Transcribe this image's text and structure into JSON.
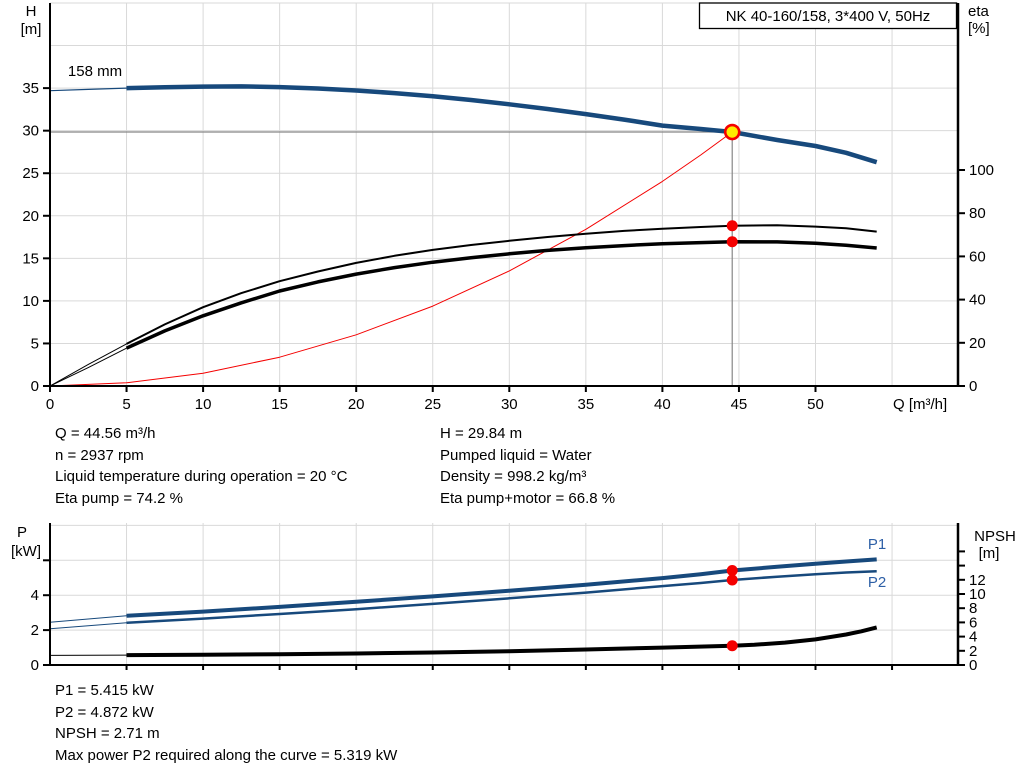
{
  "colors": {
    "curve_blue": "#17497c",
    "series_label_blue": "#2d5fa6",
    "black": "#000000",
    "red": "#f40000",
    "yellow": "#ffec00",
    "grid": "#d9d9d9",
    "guide": "#878787",
    "axis": "#000000",
    "title_box_border": "#000000",
    "title_box_fill": "#ffffff"
  },
  "title_box": {
    "label": "NK 40-160/158, 3*400 V, 50Hz"
  },
  "chart_data": [
    {
      "type": "line",
      "name": "qh-eta-chart",
      "title": "NK 40-160/158, 3*400 V, 50Hz",
      "xlabel": "Q [m³/h]",
      "x_range": [
        0,
        59.3
      ],
      "x_ticks": [
        0,
        5,
        10,
        15,
        20,
        25,
        30,
        35,
        40,
        45,
        50
      ],
      "x_grid": [
        5,
        10,
        15,
        20,
        25,
        30,
        35,
        40,
        45,
        50,
        55
      ],
      "y_left": {
        "label_lines": [
          "H",
          "[m]"
        ],
        "ticks": [
          0,
          5,
          10,
          15,
          20,
          25,
          30,
          35
        ],
        "grid": [
          5,
          10,
          15,
          20,
          25,
          30,
          35,
          40,
          45
        ],
        "range": [
          0,
          45
        ]
      },
      "y_right": {
        "label_lines": [
          "eta",
          "[%]"
        ],
        "ticks": [
          0,
          20,
          40,
          60,
          80,
          100
        ],
        "range": [
          0,
          177
        ]
      },
      "annotation": "158 mm",
      "legend_position": "none",
      "grid_on": true,
      "duty_point": {
        "q": 44.56,
        "h": 29.84
      },
      "dots": [
        {
          "axis": "right",
          "q": 44.56,
          "v": 74.2
        },
        {
          "axis": "right",
          "q": 44.56,
          "v": 66.8
        }
      ],
      "series": [
        {
          "name": "system-curve",
          "axis": "left",
          "color": "red",
          "width": [
            1,
            1
          ],
          "thick_from": 99,
          "points": [
            [
              0,
              0
            ],
            [
              5,
              0.38
            ],
            [
              10,
              1.5
            ],
            [
              15,
              3.38
            ],
            [
              20,
              6.01
            ],
            [
              25,
              9.39
            ],
            [
              30,
              13.52
            ],
            [
              35,
              18.41
            ],
            [
              40,
              24.04
            ],
            [
              42.5,
              27.14
            ],
            [
              44.56,
              29.84
            ]
          ]
        },
        {
          "name": "head-curve",
          "axis": "left",
          "color": "blue",
          "width": [
            1.2,
            4.5
          ],
          "thick_from": 5,
          "label": "158 mm",
          "points": [
            [
              0,
              34.7
            ],
            [
              2.5,
              34.85
            ],
            [
              5,
              35.0
            ],
            [
              7.5,
              35.1
            ],
            [
              10,
              35.18
            ],
            [
              12.5,
              35.2
            ],
            [
              15,
              35.12
            ],
            [
              17.5,
              34.95
            ],
            [
              20,
              34.72
            ],
            [
              22.5,
              34.42
            ],
            [
              25,
              34.05
            ],
            [
              27.5,
              33.6
            ],
            [
              30,
              33.1
            ],
            [
              32.5,
              32.55
            ],
            [
              35,
              31.95
            ],
            [
              37.5,
              31.3
            ],
            [
              40,
              30.6
            ],
            [
              42.5,
              30.2
            ],
            [
              44.56,
              29.84
            ],
            [
              47.5,
              28.9
            ],
            [
              50,
              28.2
            ],
            [
              52,
              27.4
            ],
            [
              54,
              26.3
            ]
          ]
        },
        {
          "name": "eta-pump-curve",
          "axis": "right",
          "color": "black",
          "width": [
            1,
            2
          ],
          "thick_from": 5,
          "points": [
            [
              0,
              0
            ],
            [
              2.5,
              10
            ],
            [
              5,
              19.5
            ],
            [
              7.5,
              28.5
            ],
            [
              10,
              36.5
            ],
            [
              12.5,
              43
            ],
            [
              15,
              48.5
            ],
            [
              17.5,
              53
            ],
            [
              20,
              57
            ],
            [
              22.5,
              60.3
            ],
            [
              25,
              63
            ],
            [
              27.5,
              65.3
            ],
            [
              30,
              67.2
            ],
            [
              32.5,
              69
            ],
            [
              35,
              70.5
            ],
            [
              37.5,
              71.8
            ],
            [
              40,
              72.8
            ],
            [
              42.5,
              73.6
            ],
            [
              44.56,
              74.2
            ],
            [
              47.5,
              74.4
            ],
            [
              50,
              73.8
            ],
            [
              52,
              73
            ],
            [
              54,
              71.5
            ]
          ]
        },
        {
          "name": "eta-pump-motor-curve",
          "axis": "right",
          "color": "black",
          "width": [
            1,
            3.5
          ],
          "thick_from": 5,
          "points": [
            [
              0,
              0
            ],
            [
              2.5,
              8.5
            ],
            [
              5,
              17.5
            ],
            [
              7.5,
              25.5
            ],
            [
              10,
              32.5
            ],
            [
              12.5,
              38.5
            ],
            [
              15,
              44
            ],
            [
              17.5,
              48.2
            ],
            [
              20,
              51.8
            ],
            [
              22.5,
              54.8
            ],
            [
              25,
              57.3
            ],
            [
              27.5,
              59.4
            ],
            [
              30,
              61.2
            ],
            [
              32.5,
              62.8
            ],
            [
              35,
              64
            ],
            [
              37.5,
              65
            ],
            [
              40,
              65.9
            ],
            [
              42.5,
              66.4
            ],
            [
              44.56,
              66.8
            ],
            [
              47.5,
              66.7
            ],
            [
              50,
              66.1
            ],
            [
              52,
              65.2
            ],
            [
              54,
              63.9
            ]
          ]
        }
      ]
    },
    {
      "type": "line",
      "name": "power-npsh-chart",
      "xlabel": "",
      "x_range": [
        0,
        59.3
      ],
      "x_ticks": [],
      "x_grid": [
        5,
        10,
        15,
        20,
        25,
        30,
        35,
        40,
        45,
        50,
        55
      ],
      "y_left": {
        "label_lines": [
          "P",
          "[kW]"
        ],
        "ticks": [
          0,
          2,
          4
        ],
        "unlabeled_ticks": [
          6
        ],
        "grid": [
          2,
          4,
          6,
          8
        ],
        "range": [
          0,
          8.1
        ]
      },
      "y_right": {
        "label_lines": [
          "NPSH",
          "[m]"
        ],
        "ticks": [
          0,
          2,
          4,
          6,
          8,
          10,
          12
        ],
        "unlabeled_ticks": [
          14,
          16
        ],
        "range": [
          0,
          20
        ]
      },
      "legend_position": "inline-right",
      "grid_on": true,
      "dots": [
        {
          "axis": "left",
          "q": 44.56,
          "v": 5.415
        },
        {
          "axis": "left",
          "q": 44.56,
          "v": 4.872
        },
        {
          "axis": "right",
          "q": 44.56,
          "v": 2.71
        }
      ],
      "series": [
        {
          "name": "p1-curve",
          "axis": "left",
          "color": "blue",
          "width": [
            1,
            4
          ],
          "thick_from": 5,
          "label": "P1",
          "points": [
            [
              0,
              2.45
            ],
            [
              5,
              2.82
            ],
            [
              10,
              3.06
            ],
            [
              15,
              3.33
            ],
            [
              20,
              3.62
            ],
            [
              25,
              3.93
            ],
            [
              30,
              4.26
            ],
            [
              35,
              4.6
            ],
            [
              40,
              4.98
            ],
            [
              42.5,
              5.2
            ],
            [
              44.56,
              5.415
            ],
            [
              47.5,
              5.63
            ],
            [
              50,
              5.8
            ],
            [
              52,
              5.93
            ],
            [
              54,
              6.05
            ]
          ]
        },
        {
          "name": "p2-curve",
          "axis": "left",
          "color": "blue",
          "width": [
            1,
            2.5
          ],
          "thick_from": 5,
          "label": "P2",
          "points": [
            [
              0,
              2.08
            ],
            [
              5,
              2.42
            ],
            [
              10,
              2.66
            ],
            [
              15,
              2.92
            ],
            [
              20,
              3.2
            ],
            [
              25,
              3.5
            ],
            [
              30,
              3.82
            ],
            [
              35,
              4.15
            ],
            [
              40,
              4.52
            ],
            [
              42.5,
              4.7
            ],
            [
              44.56,
              4.872
            ],
            [
              47.5,
              5.06
            ],
            [
              50,
              5.2
            ],
            [
              52,
              5.3
            ],
            [
              54,
              5.37
            ]
          ]
        },
        {
          "name": "npsh-curve",
          "axis": "right",
          "color": "black",
          "width": [
            1,
            4
          ],
          "thick_from": 5,
          "points": [
            [
              0,
              1.35
            ],
            [
              5,
              1.4
            ],
            [
              10,
              1.45
            ],
            [
              15,
              1.52
            ],
            [
              20,
              1.62
            ],
            [
              25,
              1.76
            ],
            [
              30,
              1.95
            ],
            [
              35,
              2.18
            ],
            [
              40,
              2.45
            ],
            [
              44.56,
              2.71
            ],
            [
              46,
              2.85
            ],
            [
              48,
              3.15
            ],
            [
              50,
              3.6
            ],
            [
              52,
              4.3
            ],
            [
              53,
              4.75
            ],
            [
              54,
              5.3
            ]
          ]
        }
      ]
    }
  ],
  "info_blocks": {
    "top_left": [
      "Q = 44.56 m³/h",
      "n = 2937 rpm",
      "Liquid temperature during operation = 20 °C",
      "Eta pump = 74.2 %"
    ],
    "top_right": [
      "H = 29.84 m",
      "Pumped liquid = Water",
      "Density = 998.2 kg/m³",
      "Eta pump+motor = 66.8 %"
    ],
    "bottom": [
      "P1 = 5.415 kW",
      "P2 = 4.872 kW",
      "NPSH = 2.71 m",
      "Max power P2 required along the curve = 5.319 kW"
    ]
  }
}
